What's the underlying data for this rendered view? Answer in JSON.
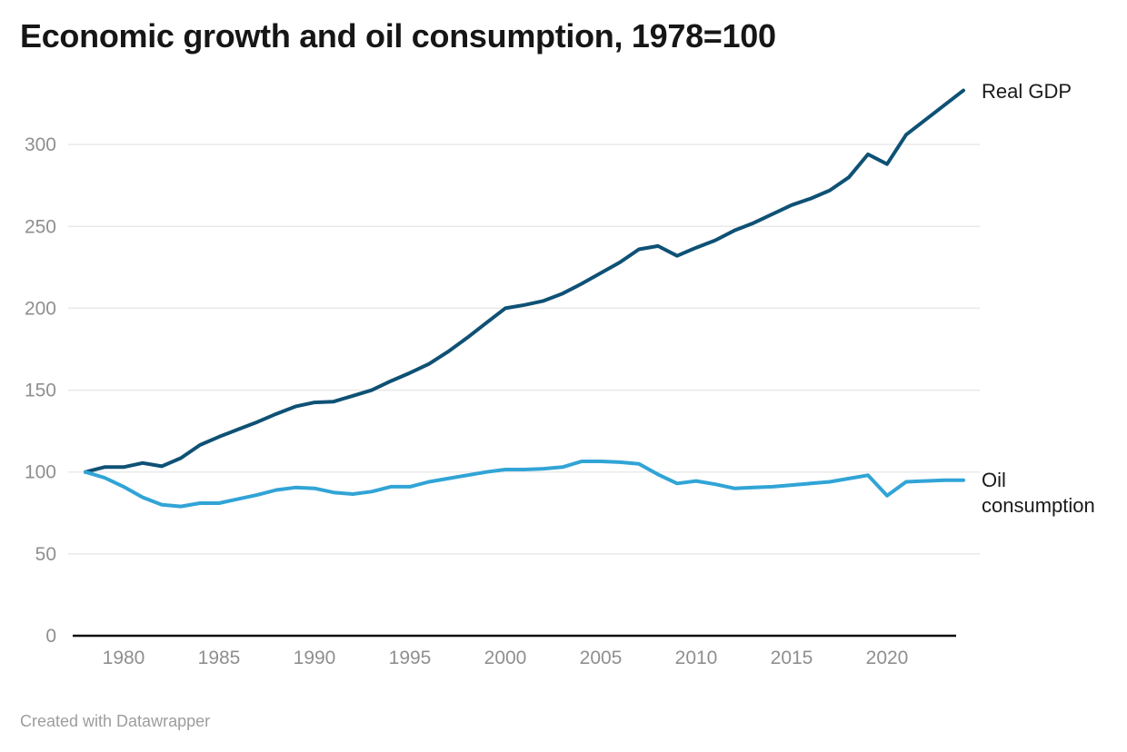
{
  "header": {
    "title": "Economic growth and oil consumption, 1978=100"
  },
  "footer": {
    "attribution": "Created with Datawrapper"
  },
  "colors": {
    "real_gdp_line": "#0e5175",
    "oil_line": "#31a4d6",
    "gridline": "#e9e9e9",
    "axis_baseline": "#0f0f0f",
    "tick_text": "#8f8f8f",
    "label_text": "#1a1a1a"
  },
  "chart_data": {
    "type": "line",
    "title": "Economic growth and oil consumption, 1978=100",
    "index_note": "1978=100",
    "xlabel": "",
    "ylabel": "",
    "xlim": [
      1978,
      2024
    ],
    "ylim": [
      0,
      340
    ],
    "grid": "horizontal",
    "legend_position": "direct-labels-right",
    "x_ticks": [
      1980,
      1985,
      1990,
      1995,
      2000,
      2005,
      2010,
      2015,
      2020
    ],
    "y_ticks": [
      0,
      50,
      100,
      150,
      200,
      250,
      300
    ],
    "x": [
      1978,
      1979,
      1980,
      1981,
      1982,
      1983,
      1984,
      1985,
      1986,
      1987,
      1988,
      1989,
      1990,
      1991,
      1992,
      1993,
      1994,
      1995,
      1996,
      1997,
      1998,
      1999,
      2000,
      2001,
      2002,
      2003,
      2004,
      2005,
      2006,
      2007,
      2008,
      2009,
      2010,
      2011,
      2012,
      2013,
      2014,
      2015,
      2016,
      2017,
      2018,
      2019,
      2020,
      2021,
      2022,
      2023,
      2024
    ],
    "series": [
      {
        "id": "real-gdp",
        "name": "Real GDP",
        "color": "#0e5175",
        "values": [
          100,
          103,
          103,
          105.5,
          103.5,
          108.5,
          116.5,
          121.5,
          126,
          130.5,
          135.5,
          140,
          142.5,
          143,
          146.5,
          150,
          155.5,
          160.5,
          166,
          173.5,
          182,
          191,
          200,
          202,
          204.5,
          209,
          215,
          221.5,
          228,
          236,
          238,
          232,
          237,
          241.5,
          247.5,
          252,
          257.5,
          263,
          267,
          272,
          280,
          294,
          288,
          306,
          315,
          324,
          333
        ]
      },
      {
        "id": "oil-consumption",
        "name": "Oil consumption",
        "color": "#31a4d6",
        "values": [
          100,
          96.5,
          91,
          84.5,
          80,
          79,
          81,
          81,
          83.5,
          86,
          89,
          90.5,
          90,
          87.5,
          86.5,
          88,
          91,
          91,
          94,
          96,
          98,
          100,
          101.5,
          101.5,
          102,
          103,
          106.5,
          106.5,
          106,
          105,
          98.5,
          93,
          94.5,
          92.5,
          90,
          90.5,
          91,
          92,
          93,
          94,
          96,
          98,
          85.5,
          94,
          94.5,
          95,
          95
        ]
      }
    ]
  }
}
